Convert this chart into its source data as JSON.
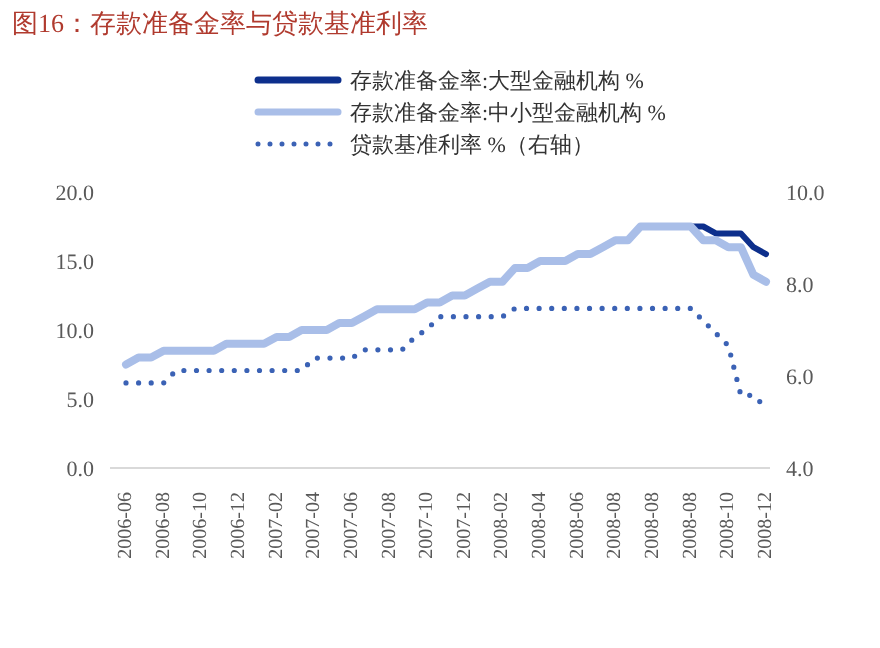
{
  "chart_data": {
    "type": "line",
    "title": "图16：存款准备金率与贷款基准利率",
    "categories": [
      "2006-06",
      null,
      null,
      "2006-08",
      null,
      null,
      "2006-10",
      null,
      null,
      "2006-12",
      null,
      null,
      "2007-02",
      null,
      null,
      "2007-04",
      null,
      null,
      "2007-06",
      null,
      null,
      "2007-08",
      null,
      null,
      "2007-10",
      null,
      null,
      "2007-12",
      null,
      null,
      "2008-02",
      null,
      null,
      "2008-04",
      null,
      null,
      "2008-06",
      null,
      null,
      "2008-08",
      null,
      null,
      "2008-08",
      null,
      null,
      "2008-08",
      null,
      null,
      "2008-10",
      null,
      null,
      "2008-12"
    ],
    "series": [
      {
        "name": "存款准备金率:大型金融机构 %",
        "color": "#0d2f8c",
        "values": [
          null,
          null,
          null,
          null,
          null,
          null,
          null,
          null,
          null,
          null,
          null,
          null,
          null,
          null,
          null,
          null,
          null,
          null,
          null,
          null,
          null,
          null,
          null,
          null,
          null,
          null,
          null,
          null,
          null,
          null,
          null,
          null,
          null,
          null,
          null,
          null,
          null,
          null,
          null,
          null,
          null,
          null,
          null,
          null,
          null,
          17.5,
          17.5,
          17.0,
          17.0,
          17.0,
          16.0,
          15.5
        ]
      },
      {
        "name": "存款准备金率:中小型金融机构 %",
        "color": "#a9bee8",
        "values": [
          7.5,
          8.0,
          8.0,
          8.5,
          8.5,
          8.5,
          8.5,
          8.5,
          9.0,
          9.0,
          9.0,
          9.0,
          9.5,
          9.5,
          10.0,
          10.0,
          10.0,
          10.5,
          10.5,
          11.0,
          11.5,
          11.5,
          11.5,
          11.5,
          12.0,
          12.0,
          12.5,
          12.5,
          13.0,
          13.5,
          13.5,
          14.5,
          14.5,
          15.0,
          15.0,
          15.0,
          15.5,
          15.5,
          16.0,
          16.5,
          16.5,
          17.5,
          17.5,
          17.5,
          17.5,
          17.5,
          16.5,
          16.5,
          16.0,
          16.0,
          14.0,
          13.5
        ]
      },
      {
        "name": "贷款基准利率 %（右轴）",
        "color": "#3b62b5",
        "axis": "y2",
        "line_style": "dotted",
        "values": [
          5.85,
          5.85,
          5.85,
          5.85,
          6.12,
          6.12,
          6.12,
          6.12,
          6.12,
          6.12,
          6.12,
          6.12,
          6.12,
          6.12,
          6.12,
          6.39,
          6.39,
          6.39,
          6.39,
          6.57,
          6.57,
          6.57,
          6.57,
          6.84,
          7.02,
          7.29,
          7.29,
          7.29,
          7.29,
          7.29,
          7.29,
          7.47,
          7.47,
          7.47,
          7.47,
          7.47,
          7.47,
          7.47,
          7.47,
          7.47,
          7.47,
          7.47,
          7.47,
          7.47,
          7.47,
          7.47,
          7.2,
          6.93,
          6.66,
          5.58,
          5.58,
          5.31
        ]
      }
    ],
    "ylim": [
      0,
      20
    ],
    "yticks": [
      {
        "value": 0,
        "label": "0.0"
      },
      {
        "value": 5,
        "label": "5.0"
      },
      {
        "value": 10,
        "label": "10.0"
      },
      {
        "value": 15,
        "label": "15.0"
      },
      {
        "value": 20,
        "label": "20.0"
      }
    ],
    "y2lim": [
      4,
      10
    ],
    "y2ticks": [
      {
        "value": 4,
        "label": "4.0"
      },
      {
        "value": 6,
        "label": "6.0"
      },
      {
        "value": 8,
        "label": "8.0"
      },
      {
        "value": 10,
        "label": "10.0"
      }
    ],
    "legend": "top"
  }
}
